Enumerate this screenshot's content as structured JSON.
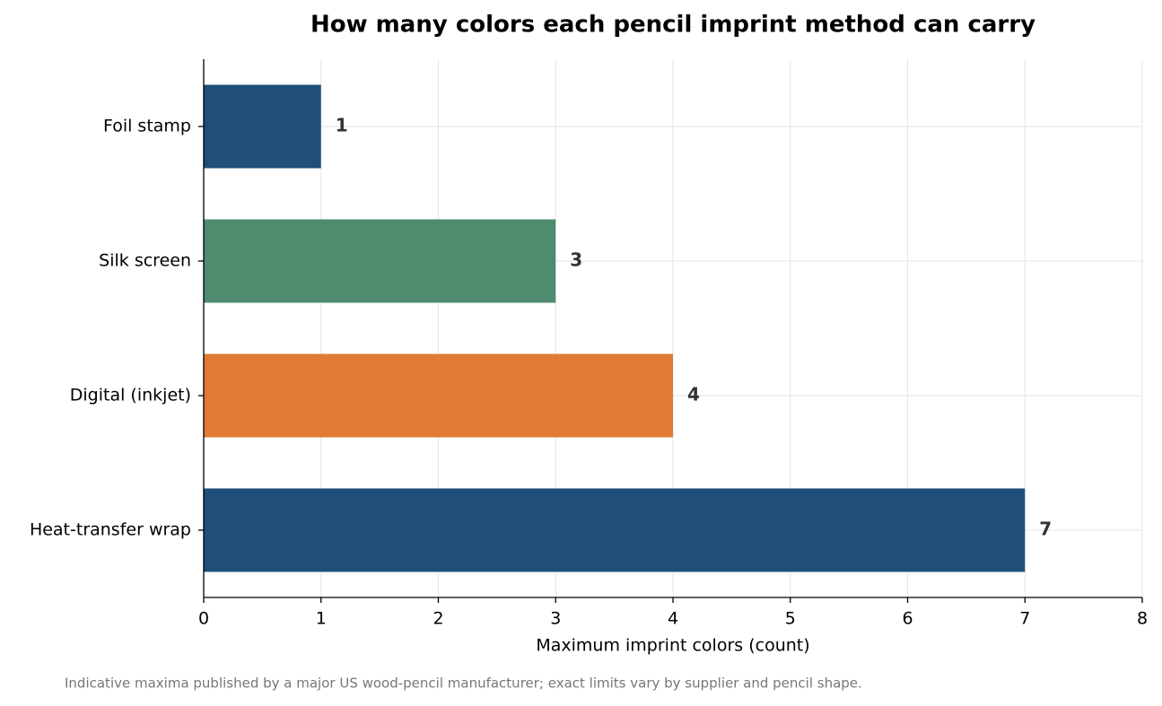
{
  "chart_data": {
    "type": "bar",
    "orientation": "horizontal",
    "title": "How many colors each pencil imprint method can carry",
    "xlabel": "Maximum imprint colors (count)",
    "note": "Indicative maxima published by a major US wood-pencil manufacturer; exact limits vary by supplier and pencil shape.",
    "categories": [
      "Foil stamp",
      "Silk screen",
      "Digital (inkjet)",
      "Heat-transfer wrap"
    ],
    "values": [
      1,
      3,
      4,
      7
    ],
    "colors": [
      "#1f4e79",
      "#4e8b6f",
      "#e07b33",
      "#1f4e79"
    ],
    "xlim": [
      0,
      8
    ],
    "xticks": [
      0,
      1,
      2,
      3,
      4,
      5,
      6,
      7,
      8
    ],
    "grid": true
  }
}
